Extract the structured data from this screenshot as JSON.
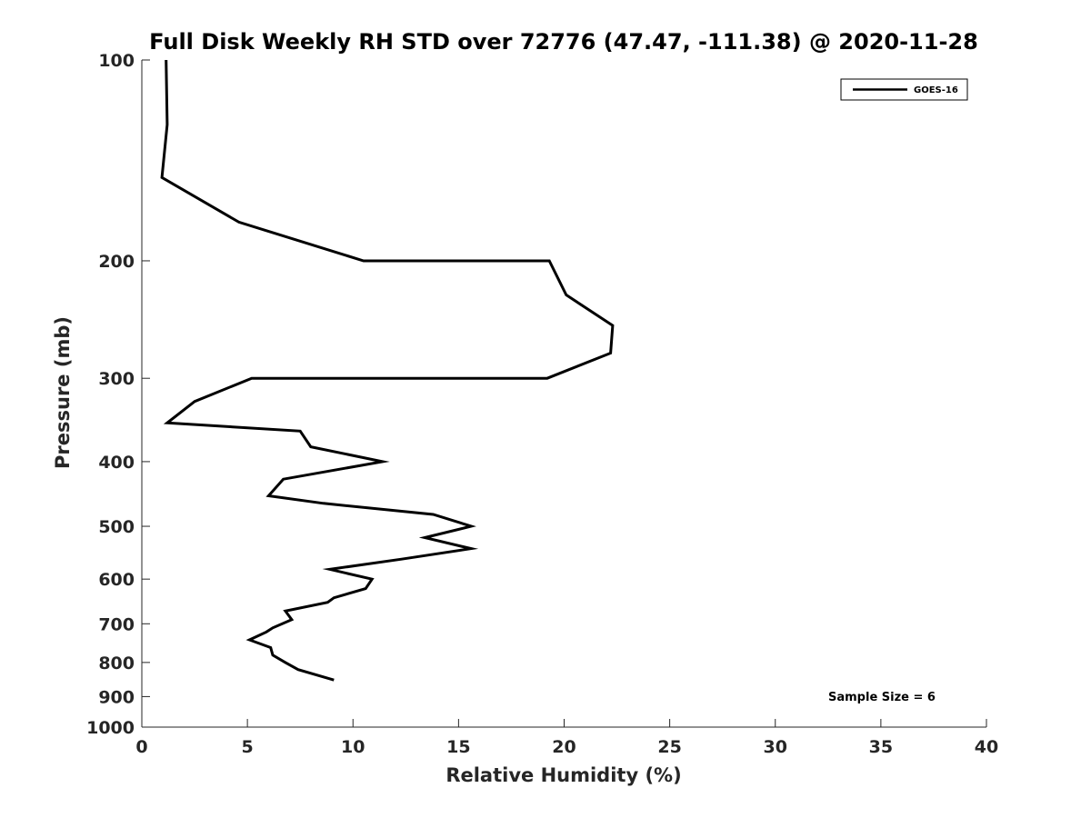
{
  "chart_data": {
    "type": "line",
    "title": "Full Disk Weekly RH STD over 72776 (47.47, -111.38) @ 2020-11-28",
    "xlabel": "Relative Humidity (%)",
    "ylabel": "Pressure (mb)",
    "xlim": [
      0,
      40
    ],
    "ylim": [
      100,
      1000
    ],
    "y_scale": "log",
    "y_reversed": true,
    "x_ticks": [
      0,
      5,
      10,
      15,
      20,
      25,
      30,
      35,
      40
    ],
    "y_ticks": [
      100,
      200,
      300,
      400,
      500,
      600,
      700,
      800,
      900,
      1000
    ],
    "grid": false,
    "legend_position": "top-right",
    "annotation": "Sample Size = 6",
    "series": [
      {
        "name": "GOES-16",
        "color": "#000000",
        "points": [
          [
            1.15,
            100
          ],
          [
            1.2,
            125
          ],
          [
            0.95,
            150
          ],
          [
            4.6,
            175
          ],
          [
            10.5,
            200
          ],
          [
            19.3,
            200
          ],
          [
            20.1,
            225
          ],
          [
            22.3,
            250
          ],
          [
            22.2,
            275
          ],
          [
            19.2,
            300
          ],
          [
            5.2,
            300
          ],
          [
            2.5,
            325
          ],
          [
            1.2,
            350
          ],
          [
            7.5,
            360
          ],
          [
            8.0,
            380
          ],
          [
            11.4,
            400
          ],
          [
            6.7,
            425
          ],
          [
            6.0,
            450
          ],
          [
            8.6,
            462
          ],
          [
            13.8,
            480
          ],
          [
            15.6,
            500
          ],
          [
            13.4,
            520
          ],
          [
            15.6,
            540
          ],
          [
            12.3,
            560
          ],
          [
            8.9,
            580
          ],
          [
            10.9,
            600
          ],
          [
            10.6,
            620
          ],
          [
            9.1,
            640
          ],
          [
            8.8,
            650
          ],
          [
            6.8,
            670
          ],
          [
            7.1,
            690
          ],
          [
            6.2,
            710
          ],
          [
            5.9,
            720
          ],
          [
            5.1,
            740
          ],
          [
            6.1,
            760
          ],
          [
            6.2,
            780
          ],
          [
            6.8,
            800
          ],
          [
            7.4,
            820
          ],
          [
            9.1,
            850
          ]
        ]
      }
    ]
  }
}
